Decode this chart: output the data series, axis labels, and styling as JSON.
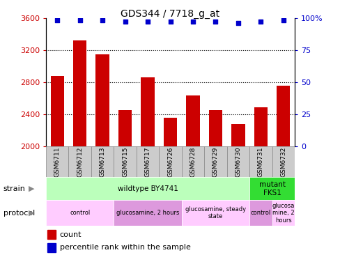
{
  "title": "GDS344 / 7718_g_at",
  "samples": [
    "GSM6711",
    "GSM6712",
    "GSM6713",
    "GSM6715",
    "GSM6717",
    "GSM6726",
    "GSM6728",
    "GSM6729",
    "GSM6730",
    "GSM6731",
    "GSM6732"
  ],
  "counts": [
    2880,
    3320,
    3150,
    2450,
    2860,
    2360,
    2640,
    2450,
    2280,
    2490,
    2760
  ],
  "percentiles": [
    98,
    98,
    98,
    97,
    97,
    97,
    97,
    97,
    96,
    97,
    98
  ],
  "ylim_left": [
    2000,
    3600
  ],
  "ylim_right": [
    0,
    100
  ],
  "yticks_left": [
    2000,
    2400,
    2800,
    3200,
    3600
  ],
  "yticks_right": [
    0,
    25,
    50,
    75,
    100
  ],
  "bar_color": "#cc0000",
  "dot_color": "#0000cc",
  "bar_width": 0.6,
  "strain_groups": [
    {
      "label": "wildtype BY4741",
      "start": 0,
      "end": 9,
      "color": "#bbffbb"
    },
    {
      "label": "mutant\nFKS1",
      "start": 9,
      "end": 11,
      "color": "#33dd33"
    }
  ],
  "protocol_groups": [
    {
      "label": "control",
      "start": 0,
      "end": 3,
      "color": "#ffccff"
    },
    {
      "label": "glucosamine, 2 hours",
      "start": 3,
      "end": 6,
      "color": "#dd99dd"
    },
    {
      "label": "glucosamine, steady\nstate",
      "start": 6,
      "end": 9,
      "color": "#ffccff"
    },
    {
      "label": "control",
      "start": 9,
      "end": 10,
      "color": "#dd99dd"
    },
    {
      "label": "glucosa\nmine, 2\nhours",
      "start": 10,
      "end": 11,
      "color": "#ffccff"
    }
  ],
  "legend_count_color": "#cc0000",
  "legend_dot_color": "#0000cc",
  "bg_color": "#ffffff",
  "grid_color": "#000000",
  "left_tick_color": "#cc0000",
  "right_tick_color": "#0000cc",
  "sample_box_color": "#cccccc",
  "sample_box_edge": "#888888"
}
